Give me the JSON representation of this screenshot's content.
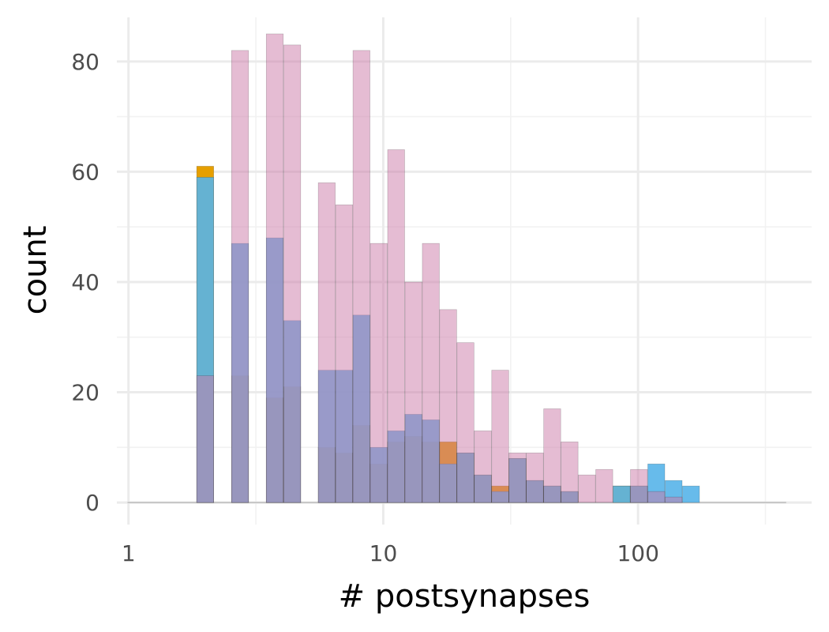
{
  "chart_data": {
    "type": "bar",
    "subtype": "overlaid-histogram",
    "title": "",
    "xlabel": "# postsynapses",
    "ylabel": "count",
    "x_scale": "log10",
    "xlim": [
      0.9,
      480
    ],
    "ylim": [
      -4,
      88
    ],
    "x_ticks": [
      1,
      10,
      100
    ],
    "x_tick_labels": [
      "1",
      "10",
      "100"
    ],
    "y_ticks": [
      0,
      20,
      40,
      60,
      80
    ],
    "y_tick_labels": [
      "0",
      "20",
      "40",
      "60",
      "80"
    ],
    "grid": true,
    "legend": "none",
    "bin_log_width": 0.0667,
    "bin_centers": [
      1.07,
      1.25,
      1.46,
      1.71,
      2.0,
      2.34,
      2.74,
      3.21,
      3.75,
      4.39,
      5.13,
      6.0,
      7.02,
      8.21,
      9.6,
      11.23,
      13.14,
      15.37,
      17.97,
      21.02,
      24.59,
      28.77,
      33.64,
      39.35,
      46.03,
      53.84,
      62.98,
      73.67,
      86.17,
      100.8,
      117.9,
      137.9,
      161.3,
      188.7,
      220.7,
      258.2,
      302.0,
      353.2
    ],
    "series": [
      {
        "values": [
          0,
          0,
          0,
          0,
          61,
          0,
          23,
          0,
          19,
          21,
          0,
          10,
          9,
          14,
          7,
          11,
          12,
          11,
          11,
          9,
          5,
          3,
          8,
          4,
          3,
          2,
          0,
          0,
          3,
          3,
          0,
          0,
          0,
          0,
          0,
          0,
          0,
          0
        ],
        "color": "#e69f00",
        "opacity": 1.0
      },
      {
        "values": [
          0,
          0,
          0,
          0,
          59,
          0,
          47,
          0,
          48,
          33,
          0,
          24,
          24,
          34,
          10,
          13,
          16,
          15,
          7,
          9,
          5,
          2,
          8,
          4,
          3,
          2,
          0,
          0,
          3,
          3,
          7,
          4,
          3,
          0,
          0,
          0,
          0,
          0
        ],
        "color": "#56b4e9",
        "opacity": 0.9
      },
      {
        "values": [
          0,
          0,
          0,
          0,
          23,
          0,
          82,
          0,
          85,
          83,
          0,
          58,
          54,
          82,
          47,
          64,
          40,
          47,
          35,
          29,
          13,
          24,
          9,
          9,
          17,
          11,
          5,
          6,
          0,
          6,
          2,
          1,
          0,
          0,
          0,
          0,
          0,
          0
        ],
        "color": "#cc79a7",
        "opacity": 0.5
      }
    ]
  }
}
